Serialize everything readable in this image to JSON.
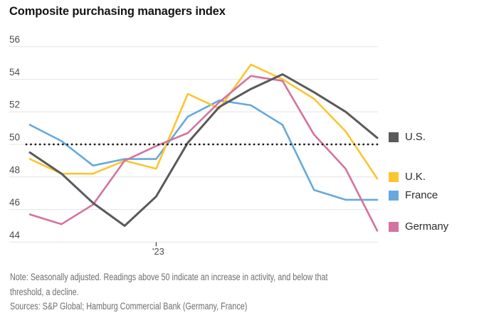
{
  "title": "Composite purchasing managers index",
  "note": {
    "line1": "Note: Seasonally adjusted. Readings above 50 indicate an increase in activity, and below that",
    "line2": "threshold, a decline.",
    "sources": "Sources: S&P Global; Hamburg Commercial Bank (Germany, France)"
  },
  "legend": {
    "items": [
      {
        "id": "us",
        "label": "U.S.",
        "color": "#5a5a5c"
      },
      {
        "id": "uk",
        "label": "U.K.",
        "color": "#fcc52f"
      },
      {
        "id": "fr",
        "label": "France",
        "color": "#66a9dd"
      },
      {
        "id": "de",
        "label": "Germany",
        "color": "#d3739e"
      }
    ]
  },
  "colors": {
    "gridline": "#e4e4e4",
    "baseline_dots": "#1a1a1a",
    "axis_text": "#4d4d4d",
    "background": "#ffffff"
  },
  "chart_data": {
    "type": "line",
    "title": "Composite purchasing managers index",
    "x_axis": {
      "points": 12,
      "tick_label": "'23",
      "tick_index": 4,
      "note": "monthly points Sep 2022 through Aug 2023; only the January 2023 tick is labeled"
    },
    "y_axis": {
      "ticks": [
        56,
        54,
        52,
        50,
        48,
        46,
        44
      ],
      "ylim": [
        43.5,
        56.5
      ],
      "baseline": 50,
      "baseline_style": "dotted"
    },
    "grid": "horizontal only",
    "legend_position": "right",
    "series": [
      {
        "name": "U.S.",
        "color": "#5a5a5c",
        "stroke_width": 3,
        "values": [
          49.5,
          48.2,
          46.4,
          45.0,
          46.8,
          50.1,
          52.3,
          53.4,
          54.3,
          53.2,
          52.0,
          50.4
        ]
      },
      {
        "name": "U.K.",
        "color": "#fcc52f",
        "stroke_width": 2.6,
        "values": [
          49.1,
          48.2,
          48.2,
          49.0,
          48.5,
          53.1,
          52.2,
          54.9,
          54.0,
          52.8,
          50.8,
          47.9
        ]
      },
      {
        "name": "France",
        "color": "#66a9dd",
        "stroke_width": 2.6,
        "values": [
          51.2,
          50.2,
          48.7,
          49.1,
          49.1,
          51.7,
          52.7,
          52.4,
          51.2,
          47.2,
          46.6,
          46.6
        ]
      },
      {
        "name": "Germany",
        "color": "#d3739e",
        "stroke_width": 2.6,
        "values": [
          45.7,
          45.1,
          46.3,
          49.0,
          49.9,
          50.7,
          52.6,
          54.2,
          53.9,
          50.6,
          48.5,
          44.7
        ]
      }
    ],
    "draw_order": [
      "France",
      "U.K.",
      "Germany",
      "U.S."
    ]
  }
}
